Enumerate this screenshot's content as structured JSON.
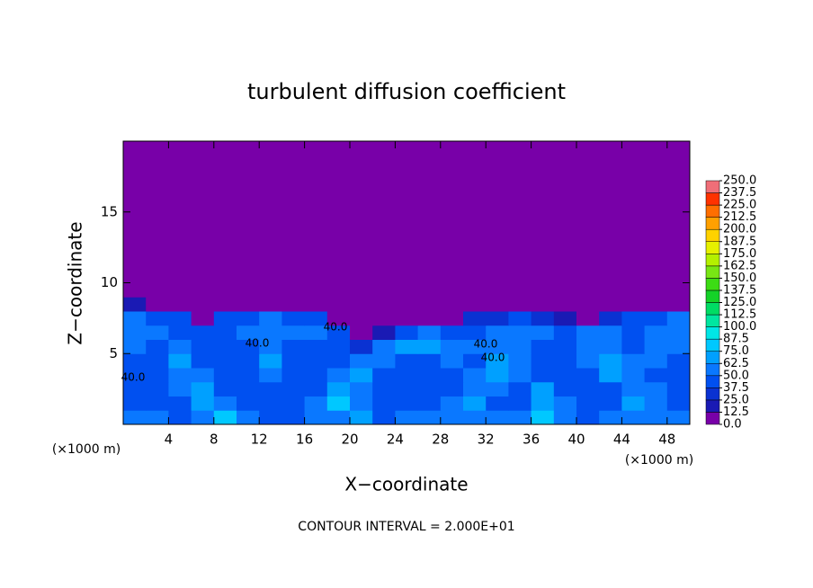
{
  "chart_data": {
    "type": "heatmap",
    "title": "turbulent diffusion coefficient",
    "x_label": "X−coordinate",
    "y_label": "Z−coordinate",
    "x_unit": "(×1000 m)",
    "y_unit": "(×1000 m)",
    "footer": "CONTOUR INTERVAL = 2.000E+01",
    "contour_labels": [
      "40.0",
      "40.0",
      "40.0",
      "40.0",
      "40.0"
    ],
    "xlim": [
      0,
      50
    ],
    "ylim": [
      0,
      20
    ],
    "xticks": [
      4,
      8,
      12,
      16,
      20,
      24,
      28,
      32,
      36,
      40,
      44,
      48
    ],
    "yticks": [
      5,
      10,
      15
    ],
    "x_bins": [
      0,
      2,
      4,
      6,
      8,
      10,
      12,
      14,
      16,
      18,
      20,
      22,
      24,
      26,
      28,
      30,
      32,
      34,
      36,
      38,
      40,
      42,
      44,
      46,
      48,
      50
    ],
    "y_bins": [
      0,
      1,
      2,
      3,
      4,
      5,
      6,
      7,
      8,
      9,
      20
    ],
    "values": [
      [
        55,
        50,
        45,
        60,
        80,
        55,
        40,
        45,
        50,
        60,
        70,
        45,
        50,
        55,
        50,
        60,
        55,
        50,
        85,
        60,
        45,
        50,
        60,
        55,
        50
      ],
      [
        45,
        40,
        45,
        70,
        55,
        40,
        40,
        45,
        60,
        75,
        55,
        45,
        40,
        45,
        50,
        70,
        45,
        40,
        70,
        60,
        45,
        45,
        70,
        50,
        45
      ],
      [
        40,
        40,
        50,
        65,
        45,
        40,
        45,
        40,
        45,
        65,
        55,
        45,
        40,
        40,
        45,
        60,
        55,
        45,
        65,
        45,
        40,
        45,
        60,
        55,
        45
      ],
      [
        40,
        40,
        60,
        50,
        40,
        40,
        60,
        40,
        40,
        55,
        65,
        40,
        40,
        40,
        45,
        50,
        70,
        50,
        40,
        40,
        45,
        65,
        55,
        45,
        40
      ],
      [
        45,
        45,
        65,
        45,
        40,
        45,
        65,
        40,
        40,
        45,
        60,
        55,
        45,
        45,
        50,
        45,
        65,
        55,
        40,
        40,
        50,
        70,
        50,
        55,
        45
      ],
      [
        50,
        45,
        55,
        45,
        40,
        45,
        60,
        45,
        45,
        40,
        30,
        60,
        70,
        65,
        60,
        55,
        50,
        60,
        45,
        40,
        55,
        60,
        45,
        60,
        50
      ],
      [
        55,
        50,
        45,
        40,
        45,
        50,
        55,
        50,
        50,
        45,
        0,
        20,
        45,
        50,
        45,
        40,
        50,
        55,
        50,
        45,
        50,
        55,
        45,
        55,
        55
      ],
      [
        50,
        45,
        40,
        10,
        40,
        45,
        50,
        45,
        40,
        0,
        0,
        0,
        0,
        0,
        0,
        30,
        35,
        40,
        30,
        20,
        0,
        30,
        40,
        45,
        50
      ],
      [
        20,
        0,
        0,
        0,
        0,
        0,
        0,
        0,
        0,
        0,
        0,
        0,
        0,
        0,
        0,
        0,
        0,
        0,
        0,
        0,
        0,
        0,
        0,
        0,
        0
      ],
      [
        0,
        0,
        0,
        0,
        0,
        0,
        0,
        0,
        0,
        0,
        0,
        0,
        0,
        0,
        0,
        0,
        0,
        0,
        0,
        0,
        0,
        0,
        0,
        0,
        0
      ]
    ],
    "levels": [
      {
        "value": 0,
        "label": "0.0"
      },
      {
        "value": 12.5,
        "label": "12.5"
      },
      {
        "value": 25,
        "label": "25.0"
      },
      {
        "value": 37.5,
        "label": "37.5"
      },
      {
        "value": 50,
        "label": "50.0"
      },
      {
        "value": 62.5,
        "label": "62.5"
      },
      {
        "value": 75,
        "label": "75.0"
      },
      {
        "value": 87.5,
        "label": "87.5"
      },
      {
        "value": 100,
        "label": "100.0"
      },
      {
        "value": 112.5,
        "label": "112.5"
      },
      {
        "value": 125,
        "label": "125.0"
      },
      {
        "value": 137.5,
        "label": "137.5"
      },
      {
        "value": 150,
        "label": "150.0"
      },
      {
        "value": 162.5,
        "label": "162.5"
      },
      {
        "value": 175,
        "label": "175.0"
      },
      {
        "value": 187.5,
        "label": "187.5"
      },
      {
        "value": 200,
        "label": "200.0"
      },
      {
        "value": 212.5,
        "label": "212.5"
      },
      {
        "value": 225,
        "label": "225.0"
      },
      {
        "value": 237.5,
        "label": "237.5"
      },
      {
        "value": 250,
        "label": "250.0"
      }
    ],
    "colors": [
      "#7800a8",
      "#1a1ab4",
      "#0a32d2",
      "#0050f0",
      "#0a78ff",
      "#00a0ff",
      "#00c8ff",
      "#00e6e6",
      "#00e6a0",
      "#00dc64",
      "#14d228",
      "#3cdc14",
      "#78e614",
      "#b4f000",
      "#e6f000",
      "#ffd200",
      "#ffa000",
      "#ff6e00",
      "#ff3200",
      "#f06e78"
    ]
  }
}
